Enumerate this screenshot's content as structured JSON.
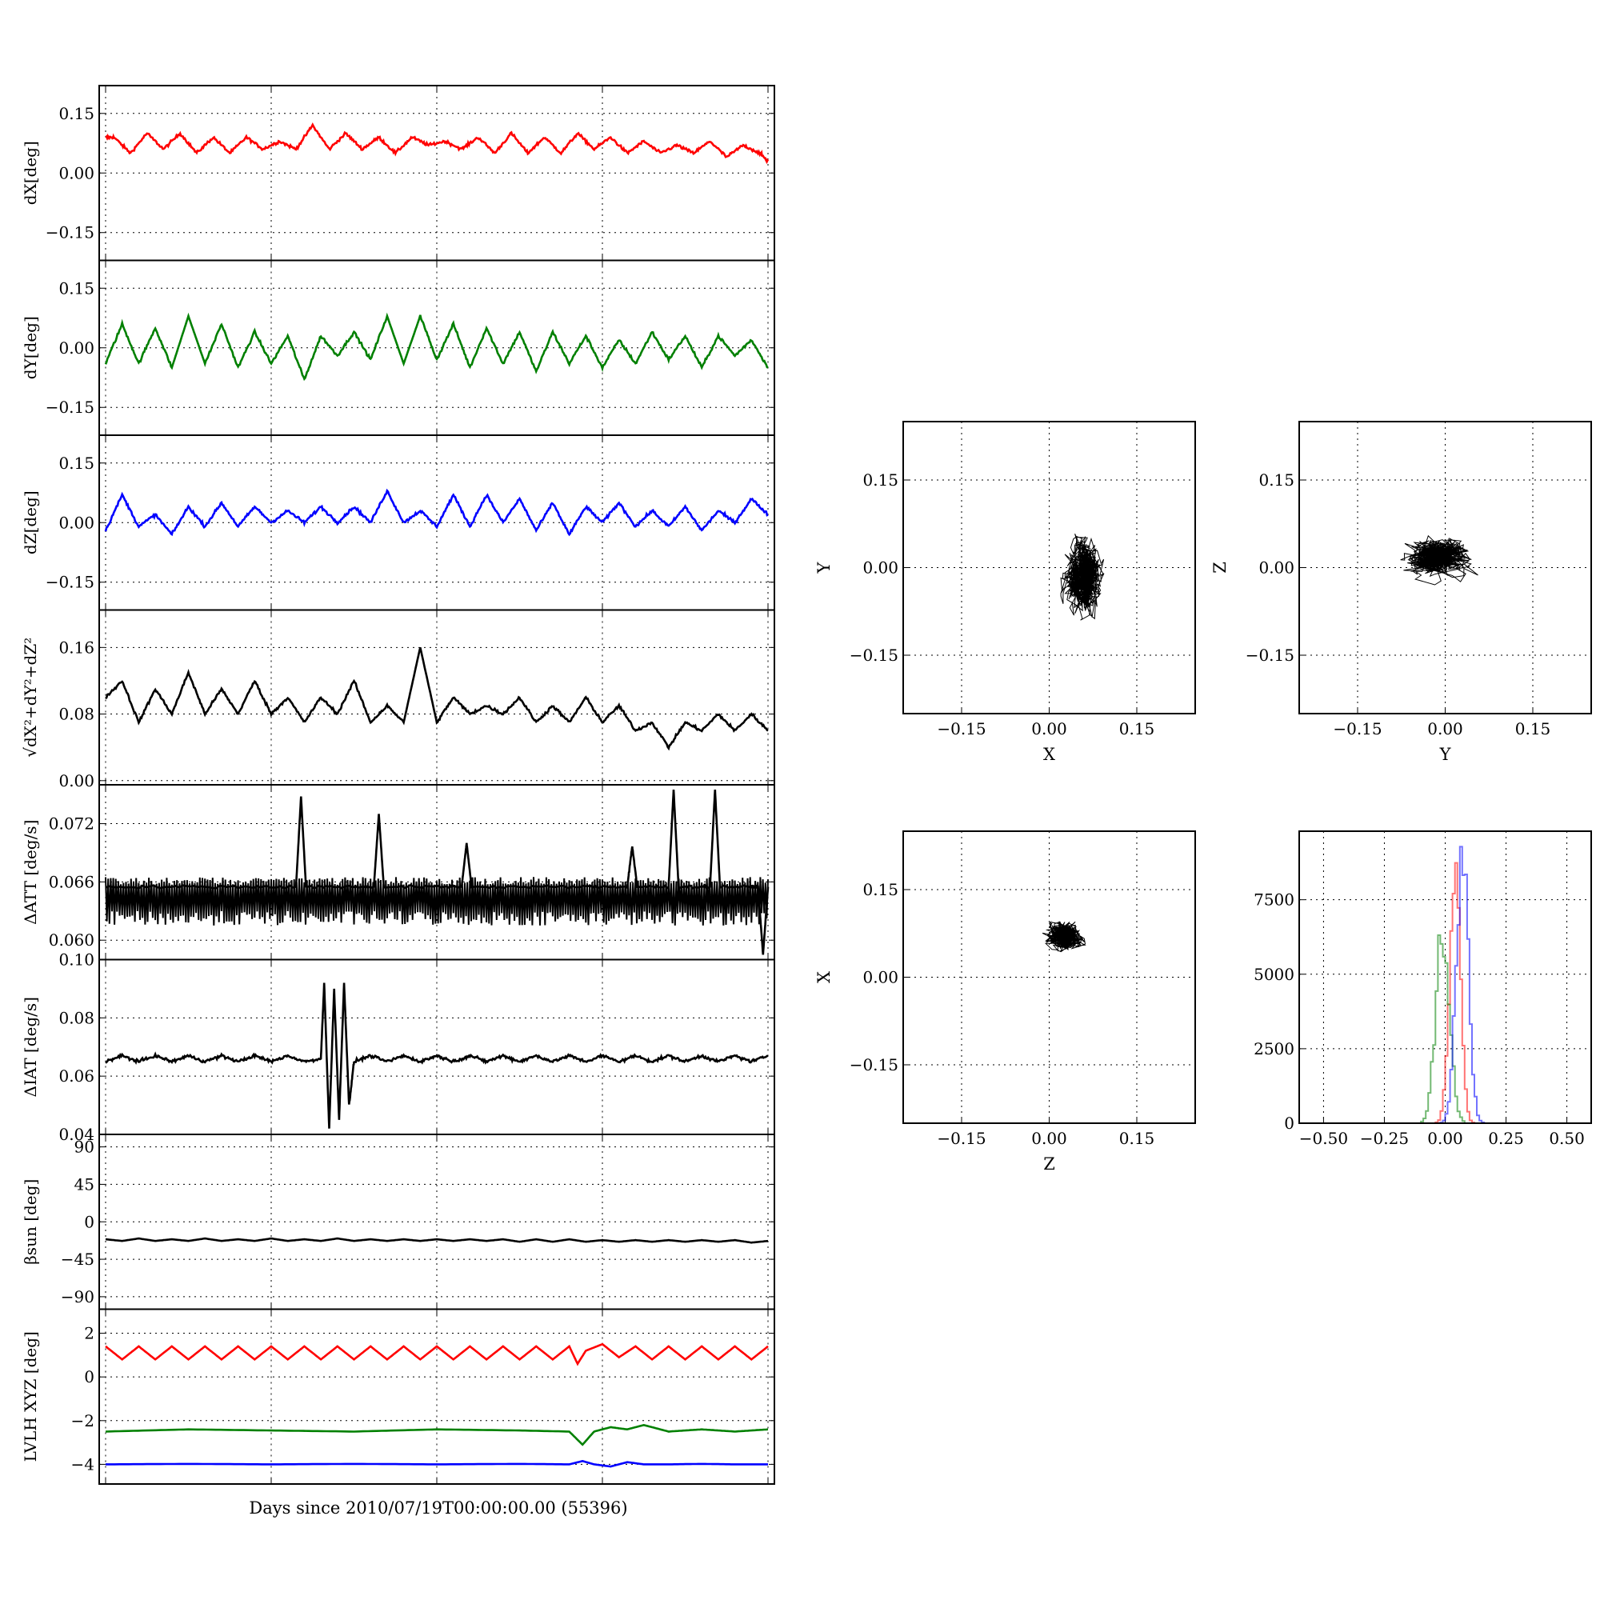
{
  "figure": {
    "xlabel": "Days since 2010/07/19T00:00:00.00 (55396)"
  },
  "chart_data": [
    {
      "id": "dx",
      "type": "line",
      "ylabel": "dX[deg]",
      "ylim": [
        -0.22,
        0.22
      ],
      "yticks": [
        -0.15,
        0.0,
        0.15
      ],
      "yticklabels": [
        "−0.15",
        "0.00",
        "0.15"
      ],
      "xlim": [
        0,
        4
      ],
      "grid": true,
      "series": [
        {
          "color": "#ff0000",
          "x": [
            0,
            0.05,
            0.15,
            0.25,
            0.35,
            0.45,
            0.55,
            0.65,
            0.75,
            0.85,
            0.95,
            1.05,
            1.15,
            1.25,
            1.35,
            1.45,
            1.55,
            1.65,
            1.75,
            1.85,
            1.95,
            2.05,
            2.15,
            2.25,
            2.35,
            2.45,
            2.55,
            2.65,
            2.75,
            2.85,
            2.95,
            3.05,
            3.15,
            3.25,
            3.35,
            3.45,
            3.55,
            3.65,
            3.75,
            3.85,
            3.95,
            4.0
          ],
          "y": [
            0.09,
            0.09,
            0.05,
            0.1,
            0.06,
            0.1,
            0.05,
            0.09,
            0.05,
            0.09,
            0.06,
            0.08,
            0.06,
            0.12,
            0.06,
            0.1,
            0.06,
            0.09,
            0.05,
            0.09,
            0.07,
            0.08,
            0.06,
            0.09,
            0.05,
            0.1,
            0.05,
            0.09,
            0.05,
            0.1,
            0.06,
            0.09,
            0.05,
            0.08,
            0.05,
            0.07,
            0.05,
            0.08,
            0.04,
            0.07,
            0.05,
            0.03
          ]
        }
      ]
    },
    {
      "id": "dy",
      "type": "line",
      "ylabel": "dY[deg]",
      "ylim": [
        -0.22,
        0.22
      ],
      "yticks": [
        -0.15,
        0.0,
        0.15
      ],
      "yticklabels": [
        "−0.15",
        "0.00",
        "0.15"
      ],
      "xlim": [
        0,
        4
      ],
      "grid": true,
      "series": [
        {
          "color": "#008000",
          "x": [
            0,
            0.1,
            0.2,
            0.3,
            0.4,
            0.5,
            0.6,
            0.7,
            0.8,
            0.9,
            1.0,
            1.1,
            1.2,
            1.3,
            1.4,
            1.5,
            1.6,
            1.7,
            1.8,
            1.9,
            2.0,
            2.1,
            2.2,
            2.3,
            2.4,
            2.5,
            2.6,
            2.7,
            2.8,
            2.9,
            3.0,
            3.1,
            3.2,
            3.3,
            3.4,
            3.5,
            3.6,
            3.7,
            3.8,
            3.9,
            4.0
          ],
          "y": [
            -0.04,
            0.06,
            -0.04,
            0.05,
            -0.05,
            0.08,
            -0.04,
            0.06,
            -0.05,
            0.04,
            -0.04,
            0.03,
            -0.08,
            0.03,
            -0.02,
            0.04,
            -0.03,
            0.08,
            -0.04,
            0.08,
            -0.03,
            0.06,
            -0.05,
            0.05,
            -0.04,
            0.04,
            -0.06,
            0.04,
            -0.04,
            0.03,
            -0.05,
            0.02,
            -0.04,
            0.04,
            -0.03,
            0.03,
            -0.05,
            0.03,
            -0.02,
            0.02,
            -0.05
          ]
        }
      ]
    },
    {
      "id": "dz",
      "type": "line",
      "ylabel": "dZ[deg]",
      "ylim": [
        -0.22,
        0.22
      ],
      "yticks": [
        -0.15,
        0.0,
        0.15
      ],
      "yticklabels": [
        "−0.15",
        "0.00",
        "0.15"
      ],
      "xlim": [
        0,
        4
      ],
      "grid": true,
      "series": [
        {
          "color": "#0000ff",
          "x": [
            0,
            0.1,
            0.2,
            0.3,
            0.4,
            0.5,
            0.6,
            0.7,
            0.8,
            0.9,
            1.0,
            1.1,
            1.2,
            1.3,
            1.4,
            1.5,
            1.6,
            1.7,
            1.8,
            1.9,
            2.0,
            2.1,
            2.2,
            2.3,
            2.4,
            2.5,
            2.6,
            2.7,
            2.8,
            2.9,
            3.0,
            3.1,
            3.2,
            3.3,
            3.4,
            3.5,
            3.6,
            3.7,
            3.8,
            3.9,
            4.0
          ],
          "y": [
            -0.02,
            0.07,
            -0.01,
            0.02,
            -0.03,
            0.04,
            -0.01,
            0.05,
            -0.01,
            0.04,
            0.0,
            0.03,
            0.0,
            0.04,
            0.0,
            0.04,
            0.0,
            0.08,
            0.0,
            0.03,
            -0.01,
            0.07,
            -0.01,
            0.07,
            0.0,
            0.06,
            -0.02,
            0.05,
            -0.03,
            0.04,
            0.0,
            0.05,
            -0.01,
            0.03,
            -0.01,
            0.04,
            -0.02,
            0.03,
            0.0,
            0.06,
            0.02
          ]
        }
      ]
    },
    {
      "id": "dr",
      "type": "line",
      "ylabel": "√dX²+dY²+dZ²",
      "ylim": [
        -0.005,
        0.205
      ],
      "yticks": [
        0.0,
        0.08,
        0.16
      ],
      "yticklabels": [
        "0.00",
        "0.08",
        "0.16"
      ],
      "xlim": [
        0,
        4
      ],
      "grid": true,
      "series": [
        {
          "color": "#000000",
          "x": [
            0,
            0.1,
            0.2,
            0.3,
            0.4,
            0.5,
            0.6,
            0.7,
            0.8,
            0.9,
            1.0,
            1.1,
            1.2,
            1.3,
            1.4,
            1.5,
            1.6,
            1.7,
            1.8,
            1.9,
            2.0,
            2.1,
            2.2,
            2.3,
            2.4,
            2.5,
            2.6,
            2.7,
            2.8,
            2.9,
            3.0,
            3.1,
            3.2,
            3.3,
            3.4,
            3.5,
            3.6,
            3.7,
            3.8,
            3.9,
            4.0
          ],
          "y": [
            0.1,
            0.12,
            0.07,
            0.11,
            0.08,
            0.13,
            0.08,
            0.11,
            0.08,
            0.12,
            0.08,
            0.1,
            0.07,
            0.1,
            0.08,
            0.12,
            0.07,
            0.09,
            0.07,
            0.16,
            0.07,
            0.1,
            0.08,
            0.09,
            0.08,
            0.1,
            0.07,
            0.09,
            0.07,
            0.1,
            0.07,
            0.09,
            0.06,
            0.07,
            0.04,
            0.07,
            0.06,
            0.08,
            0.06,
            0.08,
            0.06
          ]
        }
      ]
    },
    {
      "id": "datt",
      "type": "line",
      "ylabel": "ΔATT [deg/s]",
      "ylim": [
        0.058,
        0.076
      ],
      "yticks": [
        0.06,
        0.066,
        0.072
      ],
      "yticklabels": [
        "0.060",
        "0.066",
        "0.072"
      ],
      "xlim": [
        0,
        4
      ],
      "grid": true,
      "series": [
        {
          "color": "#000000",
          "x": [
            0,
            0.4,
            0.8,
            1.15,
            1.18,
            1.21,
            1.4,
            1.62,
            1.65,
            1.68,
            2.0,
            2.15,
            2.18,
            2.21,
            2.6,
            2.9,
            3.15,
            3.18,
            3.21,
            3.4,
            3.43,
            3.46,
            3.65,
            3.68,
            3.71,
            3.9,
            3.94,
            3.97,
            4.0
          ],
          "y": [
            0.0655,
            0.0655,
            0.0655,
            0.0655,
            0.0748,
            0.0655,
            0.0655,
            0.0655,
            0.073,
            0.0655,
            0.0655,
            0.0655,
            0.07,
            0.0655,
            0.0655,
            0.0655,
            0.0655,
            0.0697,
            0.0655,
            0.0655,
            0.0755,
            0.0655,
            0.0655,
            0.0755,
            0.0655,
            0.0655,
            0.0655,
            0.0585,
            0.0655
          ],
          "band_min": 0.0615,
          "band_max": 0.0665
        }
      ]
    },
    {
      "id": "diat",
      "type": "line",
      "ylabel": "ΔIAT [deg/s]",
      "ylim": [
        0.04,
        0.1
      ],
      "yticks": [
        0.04,
        0.06,
        0.08,
        0.1
      ],
      "yticklabels": [
        "0.04",
        "0.06",
        "0.08",
        "0.10"
      ],
      "xlim": [
        0,
        4
      ],
      "grid": true,
      "series": [
        {
          "color": "#000000",
          "x": [
            0,
            0.1,
            0.2,
            0.3,
            0.4,
            0.5,
            0.6,
            0.7,
            0.8,
            0.9,
            1.0,
            1.1,
            1.2,
            1.3,
            1.32,
            1.35,
            1.38,
            1.41,
            1.44,
            1.47,
            1.5,
            1.6,
            1.7,
            1.8,
            1.9,
            2.0,
            2.1,
            2.2,
            2.3,
            2.4,
            2.5,
            2.6,
            2.7,
            2.8,
            2.9,
            3.0,
            3.1,
            3.2,
            3.3,
            3.4,
            3.5,
            3.6,
            3.7,
            3.8,
            3.9,
            4.0
          ],
          "y": [
            0.065,
            0.067,
            0.065,
            0.067,
            0.065,
            0.067,
            0.065,
            0.067,
            0.065,
            0.067,
            0.065,
            0.067,
            0.065,
            0.066,
            0.092,
            0.042,
            0.09,
            0.045,
            0.092,
            0.05,
            0.065,
            0.067,
            0.065,
            0.067,
            0.065,
            0.067,
            0.065,
            0.067,
            0.065,
            0.067,
            0.065,
            0.067,
            0.065,
            0.067,
            0.065,
            0.067,
            0.065,
            0.067,
            0.065,
            0.067,
            0.065,
            0.067,
            0.065,
            0.067,
            0.065,
            0.067
          ]
        }
      ]
    },
    {
      "id": "beta",
      "type": "line",
      "ylabel": "βsun [deg]",
      "ylim": [
        -105,
        105
      ],
      "yticks": [
        -90,
        -45,
        0,
        45,
        90
      ],
      "yticklabels": [
        "−90",
        "−45",
        "0",
        "45",
        "90"
      ],
      "xlim": [
        0,
        4
      ],
      "grid": true,
      "series": [
        {
          "color": "#000000",
          "x": [
            0,
            0.1,
            0.2,
            0.3,
            0.4,
            0.5,
            0.6,
            0.7,
            0.8,
            0.9,
            1.0,
            1.1,
            1.2,
            1.3,
            1.4,
            1.5,
            1.6,
            1.7,
            1.8,
            1.9,
            2.0,
            2.1,
            2.2,
            2.3,
            2.4,
            2.5,
            2.6,
            2.7,
            2.8,
            2.9,
            3.0,
            3.1,
            3.2,
            3.3,
            3.4,
            3.5,
            3.6,
            3.7,
            3.8,
            3.9,
            4.0
          ],
          "y": [
            -21,
            -23,
            -20,
            -23,
            -21,
            -23,
            -20,
            -23,
            -21,
            -23,
            -20,
            -23,
            -21,
            -23,
            -20,
            -23,
            -21,
            -23,
            -21,
            -23,
            -21,
            -23,
            -21,
            -23,
            -21,
            -24,
            -21,
            -24,
            -21,
            -24,
            -22,
            -24,
            -22,
            -24,
            -22,
            -24,
            -22,
            -24,
            -22,
            -25,
            -23
          ]
        }
      ]
    },
    {
      "id": "lvlh",
      "type": "line",
      "ylabel": "LVLH XYZ [deg]",
      "ylim": [
        -4.9,
        3.1
      ],
      "yticks": [
        -4,
        -2,
        0,
        2
      ],
      "yticklabels": [
        "−4",
        "−2",
        "0",
        "2"
      ],
      "xlim": [
        0,
        4
      ],
      "grid": true,
      "series": [
        {
          "color": "#ff0000",
          "x": [
            0,
            0.1,
            0.2,
            0.3,
            0.4,
            0.5,
            0.6,
            0.7,
            0.8,
            0.9,
            1.0,
            1.1,
            1.2,
            1.3,
            1.4,
            1.5,
            1.6,
            1.7,
            1.8,
            1.9,
            2.0,
            2.1,
            2.2,
            2.3,
            2.4,
            2.5,
            2.6,
            2.7,
            2.8,
            2.85,
            2.9,
            3.0,
            3.1,
            3.2,
            3.3,
            3.4,
            3.5,
            3.6,
            3.7,
            3.8,
            3.9,
            4.0
          ],
          "y": [
            1.4,
            0.8,
            1.4,
            0.8,
            1.4,
            0.8,
            1.4,
            0.8,
            1.4,
            0.8,
            1.4,
            0.8,
            1.4,
            0.8,
            1.4,
            0.8,
            1.4,
            0.8,
            1.4,
            0.8,
            1.4,
            0.8,
            1.4,
            0.8,
            1.4,
            0.8,
            1.4,
            0.8,
            1.4,
            0.6,
            1.2,
            1.5,
            0.9,
            1.4,
            0.8,
            1.4,
            0.8,
            1.4,
            0.8,
            1.4,
            0.8,
            1.4
          ]
        },
        {
          "color": "#008000",
          "x": [
            0,
            0.5,
            1.0,
            1.5,
            2.0,
            2.5,
            2.8,
            2.88,
            2.95,
            3.05,
            3.15,
            3.25,
            3.4,
            3.6,
            3.8,
            4.0
          ],
          "y": [
            -2.5,
            -2.4,
            -2.45,
            -2.5,
            -2.4,
            -2.45,
            -2.5,
            -3.1,
            -2.5,
            -2.3,
            -2.4,
            -2.2,
            -2.5,
            -2.4,
            -2.5,
            -2.4
          ]
        },
        {
          "color": "#0000ff",
          "x": [
            0,
            0.5,
            1.0,
            1.5,
            2.0,
            2.5,
            2.8,
            2.88,
            2.95,
            3.05,
            3.15,
            3.25,
            3.4,
            3.6,
            3.8,
            4.0
          ],
          "y": [
            -4.0,
            -3.98,
            -4.0,
            -3.98,
            -4.0,
            -3.98,
            -4.0,
            -3.85,
            -4.0,
            -4.1,
            -3.9,
            -4.0,
            -4.0,
            -3.98,
            -4.0,
            -4.0
          ]
        }
      ]
    },
    {
      "id": "xy",
      "type": "scatter",
      "xlabel": "X",
      "ylabel": "Y",
      "xlim": [
        -0.25,
        0.25
      ],
      "ylim": [
        -0.25,
        0.25
      ],
      "ticks": [
        -0.15,
        0.0,
        0.15
      ],
      "ticklabels": [
        "−0.15",
        "0.00",
        "0.15"
      ],
      "grid": true,
      "cloud": {
        "cx": 0.06,
        "cy": -0.01,
        "sx": 0.022,
        "sy": 0.04,
        "xmin": 0.02,
        "xmax": 0.13,
        "ymin": -0.09,
        "ymax": 0.1
      }
    },
    {
      "id": "yz",
      "type": "scatter",
      "xlabel": "Y",
      "ylabel": "Z",
      "xlim": [
        -0.25,
        0.25
      ],
      "ylim": [
        -0.25,
        0.25
      ],
      "ticks": [
        -0.15,
        0.0,
        0.15
      ],
      "ticklabels": [
        "−0.15",
        "0.00",
        "0.15"
      ],
      "grid": true,
      "cloud": {
        "cx": -0.01,
        "cy": 0.02,
        "sx": 0.035,
        "sy": 0.02,
        "xmin": -0.09,
        "xmax": 0.1,
        "ymin": -0.03,
        "ymax": 0.09
      }
    },
    {
      "id": "zx",
      "type": "scatter",
      "xlabel": "Z",
      "ylabel": "X",
      "xlim": [
        -0.25,
        0.25
      ],
      "ylim": [
        -0.25,
        0.25
      ],
      "ticks": [
        -0.15,
        0.0,
        0.15
      ],
      "ticklabels": [
        "−0.15",
        "0.00",
        "0.15"
      ],
      "grid": true,
      "cloud": {
        "cx": 0.03,
        "cy": 0.07,
        "sx": 0.02,
        "sy": 0.015,
        "xmin": -0.03,
        "xmax": 0.1,
        "ymin": 0.02,
        "ymax": 0.14
      }
    },
    {
      "id": "hist",
      "type": "histogram",
      "xlim": [
        -0.6,
        0.6
      ],
      "ylim": [
        0,
        9800
      ],
      "xticks": [
        -0.5,
        -0.25,
        0.0,
        0.25,
        0.5
      ],
      "xticklabels": [
        "−0.50",
        "−0.25",
        "0.00",
        "0.25",
        "0.50"
      ],
      "yticks": [
        0,
        2500,
        5000,
        7500
      ],
      "yticklabels": [
        "0",
        "2500",
        "5000",
        "7500"
      ],
      "grid": true,
      "series": [
        {
          "color": "#ff0000",
          "center": 0.04,
          "sigma": 0.022,
          "peak": 8500
        },
        {
          "color": "#008000",
          "center": -0.01,
          "sigma": 0.028,
          "peak": 6600
        },
        {
          "color": "#0000ff",
          "center": 0.07,
          "sigma": 0.025,
          "peak": 9000
        }
      ]
    }
  ]
}
